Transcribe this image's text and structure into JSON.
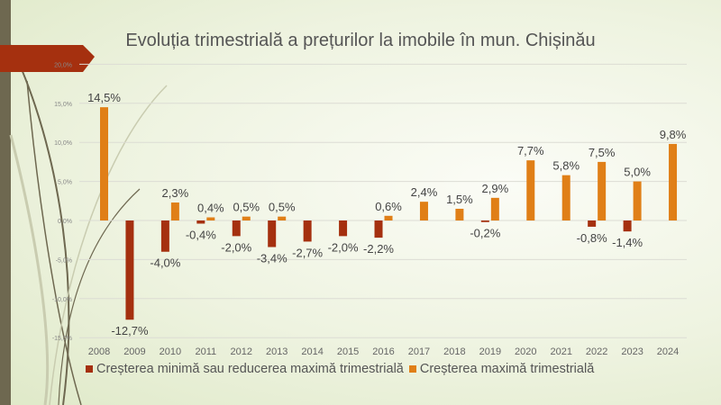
{
  "chart_data": {
    "type": "bar",
    "title": "Evoluția trimestrială a prețurilor la imobile în mun. Chișinău",
    "categories": [
      "2008",
      "2009",
      "2010",
      "2011",
      "2012",
      "2013",
      "2014",
      "2015",
      "2016",
      "2017",
      "2018",
      "2019",
      "2020",
      "2021",
      "2022",
      "2023",
      "2024"
    ],
    "series": [
      {
        "name": "Creșterea minimă sau reducerea maximă trimestrială",
        "color": "#a5300f",
        "values": [
          null,
          -12.7,
          -4.0,
          -0.4,
          -2.0,
          -3.4,
          -2.7,
          -2.0,
          -2.2,
          null,
          null,
          -0.2,
          null,
          null,
          -0.8,
          -1.4,
          null
        ],
        "labels": [
          "",
          "-12,7%",
          "-4,0%",
          "-0,4%",
          "-2,0%",
          "-3,4%",
          "-2,7%",
          "-2,0%",
          "-2,2%",
          "",
          "",
          "-0,2%",
          "",
          "",
          "-0,8%",
          "-1,4%",
          ""
        ]
      },
      {
        "name": "Creșterea maximă trimestrială",
        "color": "#e07f17",
        "values": [
          14.5,
          null,
          2.3,
          0.4,
          0.5,
          0.5,
          null,
          null,
          0.6,
          2.4,
          1.5,
          2.9,
          7.7,
          5.8,
          7.5,
          5.0,
          9.8
        ],
        "labels": [
          "14,5%",
          "",
          "2,3%",
          "0,4%",
          "0,5%",
          "0,5%",
          "",
          "",
          "0,6%",
          "2,4%",
          "1,5%",
          "2,9%",
          "7,7%",
          "5,8%",
          "7,5%",
          "5,0%",
          "9,8%"
        ]
      }
    ],
    "ylim": [
      -15,
      20
    ],
    "yticks": [
      "-15,0%",
      "-10,0%",
      "-5,0%",
      "0,0%",
      "5,0%",
      "10,0%",
      "15,0%",
      "20,0%"
    ],
    "ytick_values": [
      -15,
      -10,
      -5,
      0,
      5,
      10,
      15,
      20
    ],
    "grid": true,
    "legend": "bottom"
  }
}
